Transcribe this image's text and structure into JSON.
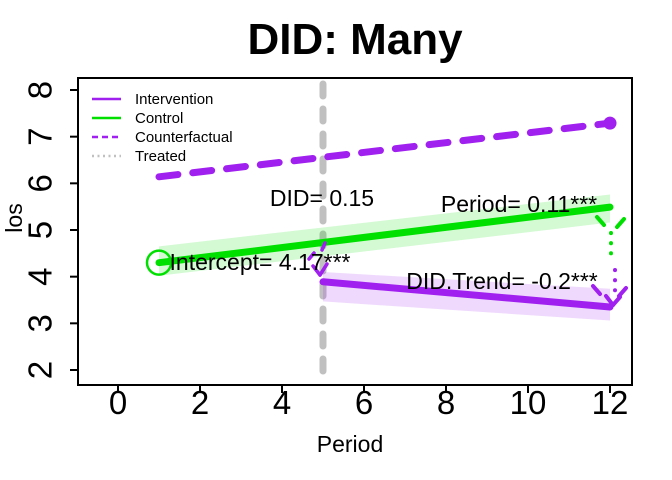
{
  "window": {
    "background": "#ffffff"
  },
  "chart_data": {
    "type": "line",
    "title": "DID: Many",
    "xlabel": "Period",
    "ylabel": "los",
    "x_ticks": [
      "0",
      "2",
      "4",
      "6",
      "8",
      "10",
      "12"
    ],
    "x_tick_values": [
      0,
      2,
      4,
      6,
      8,
      10,
      12
    ],
    "y_ticks": [
      "2",
      "3",
      "4",
      "5",
      "6",
      "7",
      "8"
    ],
    "y_tick_values": [
      2,
      3,
      4,
      5,
      6,
      7,
      8
    ],
    "xlim": [
      -1,
      12.6
    ],
    "ylim": [
      1.6,
      8.3
    ],
    "grid": false,
    "frame_color": "#000000",
    "legend_position": "top-left",
    "legend": [
      {
        "label": "Intervention",
        "color": "#A020F0",
        "style": "solid"
      },
      {
        "label": "Control",
        "color": "#00E000",
        "style": "solid"
      },
      {
        "label": "Counterfactual",
        "color": "#A020F0",
        "style": "dashed"
      },
      {
        "label": "Treated",
        "color": "#C0C0C0",
        "style": "dotted"
      }
    ],
    "series": [
      {
        "name": "Intervention",
        "color": "#A020F0",
        "style": "solid",
        "x": [
          5,
          12
        ],
        "y": [
          3.89,
          3.35
        ],
        "band": {
          "upper": [
            4.1,
            3.74
          ],
          "lower": [
            3.47,
            3.06
          ]
        }
      },
      {
        "name": "Control",
        "color": "#00E000",
        "style": "solid",
        "x": [
          1,
          12
        ],
        "y": [
          4.3,
          5.49
        ],
        "band": {
          "upper": [
            4.65,
            5.76
          ],
          "lower": [
            4.02,
            5.16
          ]
        },
        "start_marker": "open-circle"
      },
      {
        "name": "Counterfactual",
        "color": "#A020F0",
        "style": "dashed",
        "x": [
          1,
          12
        ],
        "y": [
          6.14,
          7.29
        ],
        "end_marker": "dot"
      },
      {
        "name": "Treated",
        "color": "#C0C0C0",
        "style": "vline-dashed",
        "at_x": 5
      }
    ],
    "annotations": [
      {
        "id": "did",
        "text": "DID= 0.15",
        "x": 4.98,
        "y": 5.51
      },
      {
        "id": "period",
        "text": "Period= 0.11***",
        "x": 9.78,
        "y": 5.39
      },
      {
        "id": "intercept",
        "text": "Intercept= 4.17***",
        "x": 3.46,
        "y": 4.14
      },
      {
        "id": "did_trend",
        "text": "DID.Trend= -0.2***",
        "x": 9.37,
        "y": 3.74
      }
    ],
    "estimates": {
      "intercept": 4.17,
      "period": 0.11,
      "did": 0.15,
      "did_trend": -0.2,
      "treatment_start": 5
    }
  }
}
